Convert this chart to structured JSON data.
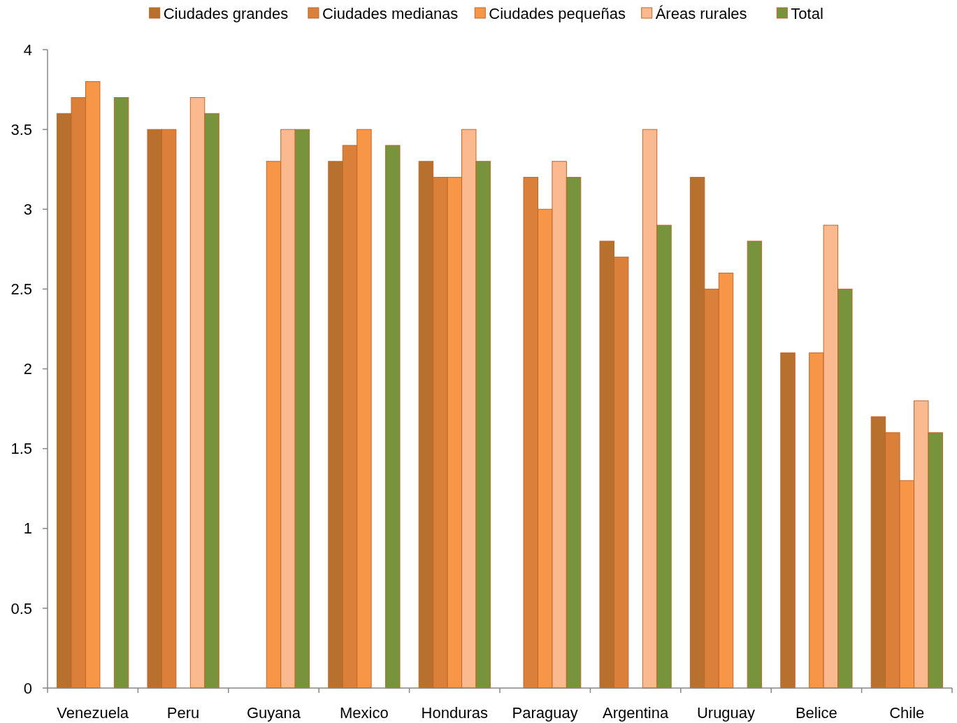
{
  "chart_data": {
    "type": "bar",
    "categories": [
      "Venezuela",
      "Peru",
      "Guyana",
      "Mexico",
      "Honduras",
      "Paraguay",
      "Argentina",
      "Uruguay",
      "Belice",
      "Chile"
    ],
    "series": [
      {
        "name": "Ciudades grandes",
        "color": "#b8702f",
        "values": [
          3.6,
          3.5,
          null,
          3.3,
          3.3,
          null,
          2.8,
          3.2,
          2.1,
          1.7
        ]
      },
      {
        "name": "Ciudades medianas",
        "color": "#da803a",
        "values": [
          3.7,
          3.5,
          null,
          3.4,
          3.2,
          3.2,
          2.7,
          2.5,
          null,
          1.6
        ]
      },
      {
        "name": "Ciudades pequeñas",
        "color": "#f79646",
        "values": [
          3.8,
          null,
          3.3,
          3.5,
          3.2,
          3.0,
          null,
          2.6,
          2.1,
          1.3
        ]
      },
      {
        "name": "Áreas rurales",
        "color": "#fab98e",
        "values": [
          null,
          3.7,
          3.5,
          null,
          3.5,
          3.3,
          3.5,
          null,
          2.9,
          1.8
        ]
      },
      {
        "name": "Total",
        "color": "#77933c",
        "values": [
          3.7,
          3.6,
          3.5,
          3.4,
          3.3,
          3.2,
          2.9,
          2.8,
          2.5,
          1.6
        ]
      }
    ],
    "ylim": [
      0,
      4
    ],
    "yticks": [
      0,
      0.5,
      1,
      1.5,
      2,
      2.5,
      3,
      3.5,
      4
    ],
    "grid": false,
    "legend": "top"
  }
}
